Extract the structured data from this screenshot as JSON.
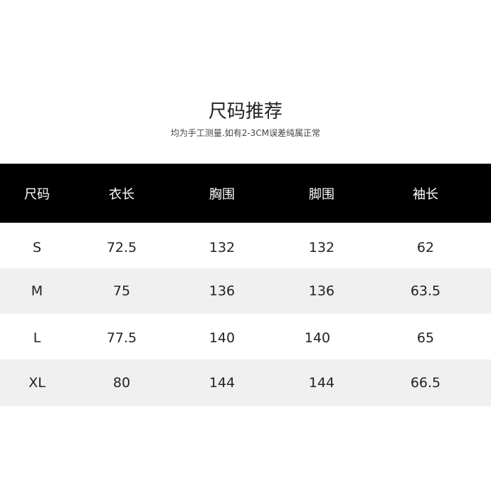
{
  "title": "尺码推荐",
  "subtitle": "均为手工测量.如有2-3CM误差纯属正常",
  "table": {
    "headers": [
      "尺码",
      "衣长",
      "胸围",
      "脚围",
      "袖长"
    ],
    "rows": [
      [
        "S",
        "72.5",
        "132",
        "132",
        "62"
      ],
      [
        "M",
        "75",
        "136",
        "136",
        "63.5"
      ],
      [
        "L",
        "77.5",
        "140",
        "140",
        "65"
      ],
      [
        "XL",
        "80",
        "144",
        "144",
        "66.5"
      ]
    ]
  },
  "colors": {
    "header_bg": "#000000",
    "stripe_bg": "#f0f0f0"
  }
}
